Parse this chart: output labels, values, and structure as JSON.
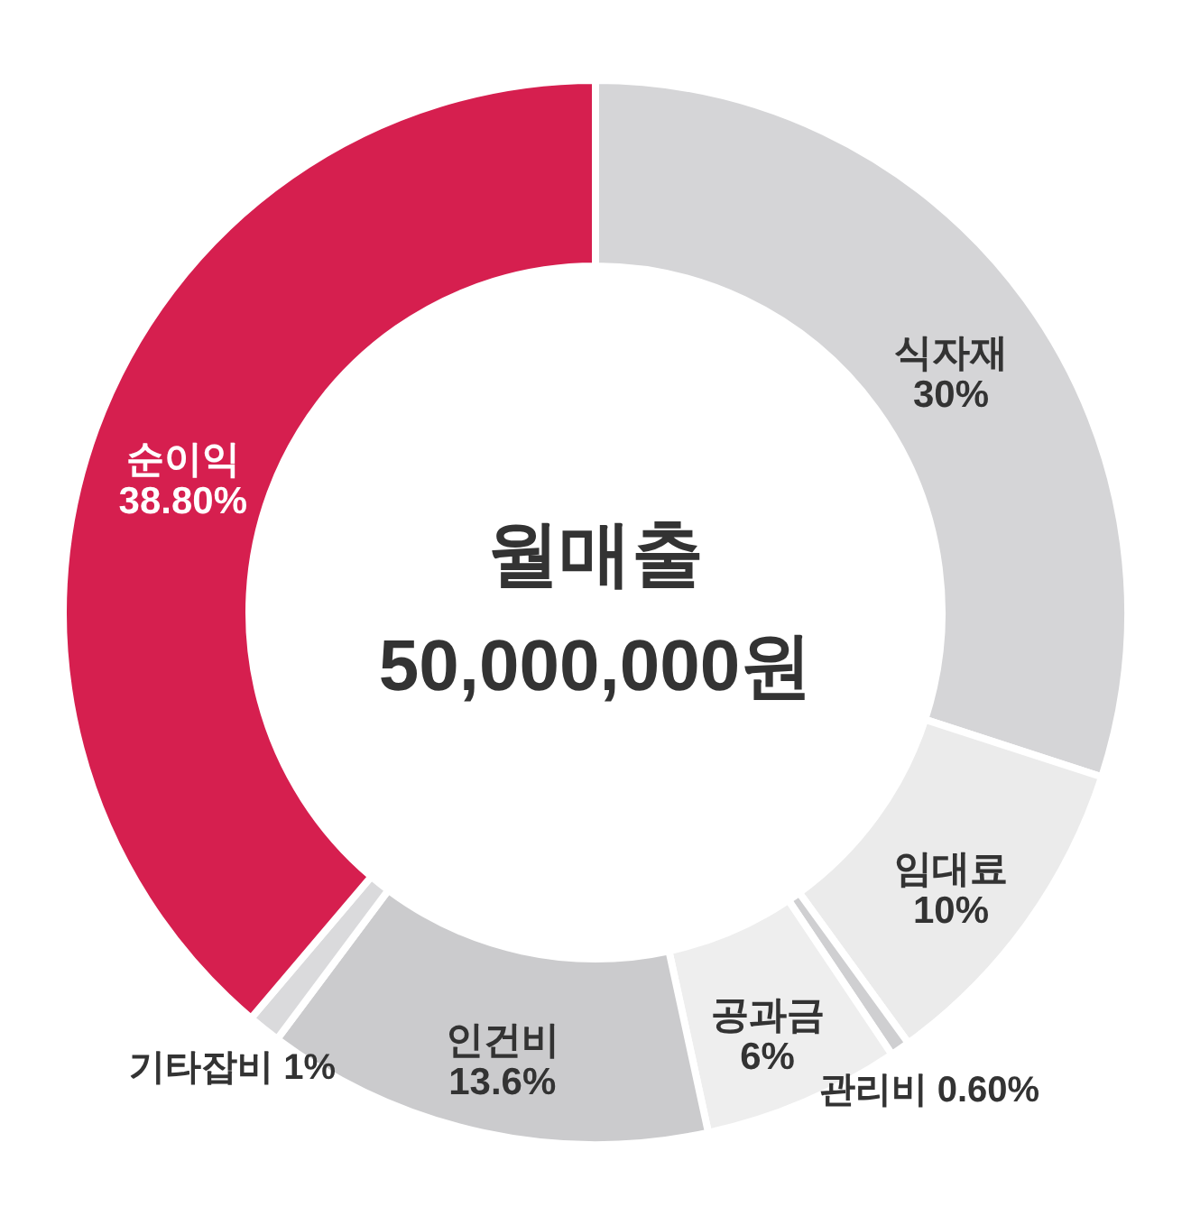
{
  "chart_data": {
    "type": "donut",
    "categories": [
      "식자재",
      "임대료",
      "관리비",
      "공과금",
      "인건비",
      "기타잡비",
      "순이익"
    ],
    "values": [
      30,
      10,
      0.6,
      6,
      13.6,
      1,
      38.8
    ],
    "value_labels": [
      "30%",
      "10%",
      "0.60%",
      "6%",
      "13.6%",
      "1%",
      "38.80%"
    ],
    "colors": [
      "#d5d5d7",
      "#ebebeb",
      "#cfcfd1",
      "#eeeeee",
      "#cbcbcd",
      "#dadadc",
      "#d61f4f"
    ],
    "annotations": [
      "월매출",
      "50,000,000원"
    ]
  }
}
